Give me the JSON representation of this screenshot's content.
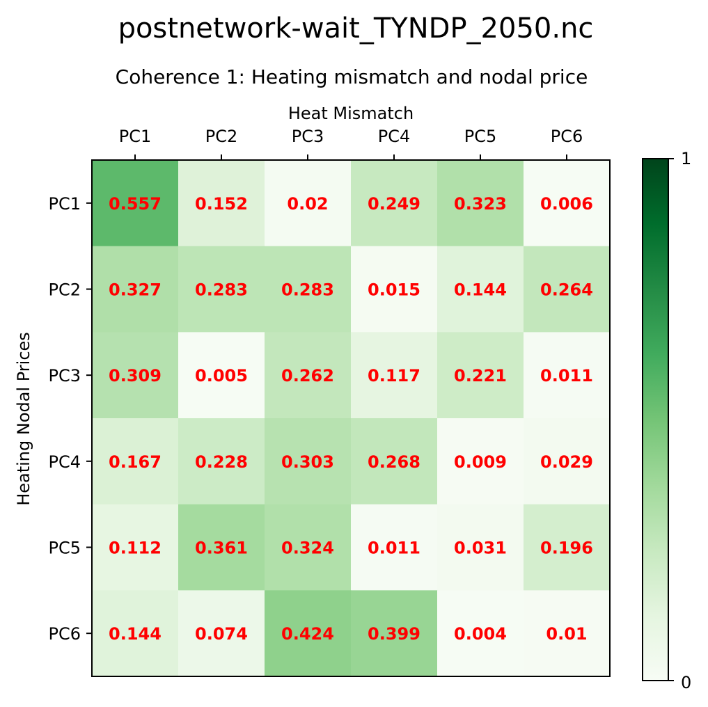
{
  "suptitle": "postnetwork-wait_TYNDP_2050.nc",
  "colors": {
    "cell_text": "#ff0000",
    "cmap_low": "#f7fcf5",
    "cmap_high": "#00441b"
  },
  "chart_data": {
    "type": "heatmap",
    "title": "Coherence 1: Heating mismatch and nodal price",
    "xlabel": "Heat Mismatch",
    "ylabel": "Heating Nodal Prices",
    "x_categories": [
      "PC1",
      "PC2",
      "PC3",
      "PC4",
      "PC5",
      "PC6"
    ],
    "y_categories": [
      "PC1",
      "PC2",
      "PC3",
      "PC4",
      "PC5",
      "PC6"
    ],
    "values": [
      [
        0.557,
        0.152,
        0.02,
        0.249,
        0.323,
        0.006
      ],
      [
        0.327,
        0.283,
        0.283,
        0.015,
        0.144,
        0.264
      ],
      [
        0.309,
        0.005,
        0.262,
        0.117,
        0.221,
        0.011
      ],
      [
        0.167,
        0.228,
        0.303,
        0.268,
        0.009,
        0.029
      ],
      [
        0.112,
        0.361,
        0.324,
        0.011,
        0.031,
        0.196
      ],
      [
        0.144,
        0.074,
        0.424,
        0.399,
        0.004,
        0.01
      ]
    ],
    "colorbar": {
      "min": 0,
      "max": 1,
      "ticks": [
        "0",
        "1"
      ],
      "colormap": "Greens"
    },
    "x_axis_position": "top",
    "grid": false
  }
}
